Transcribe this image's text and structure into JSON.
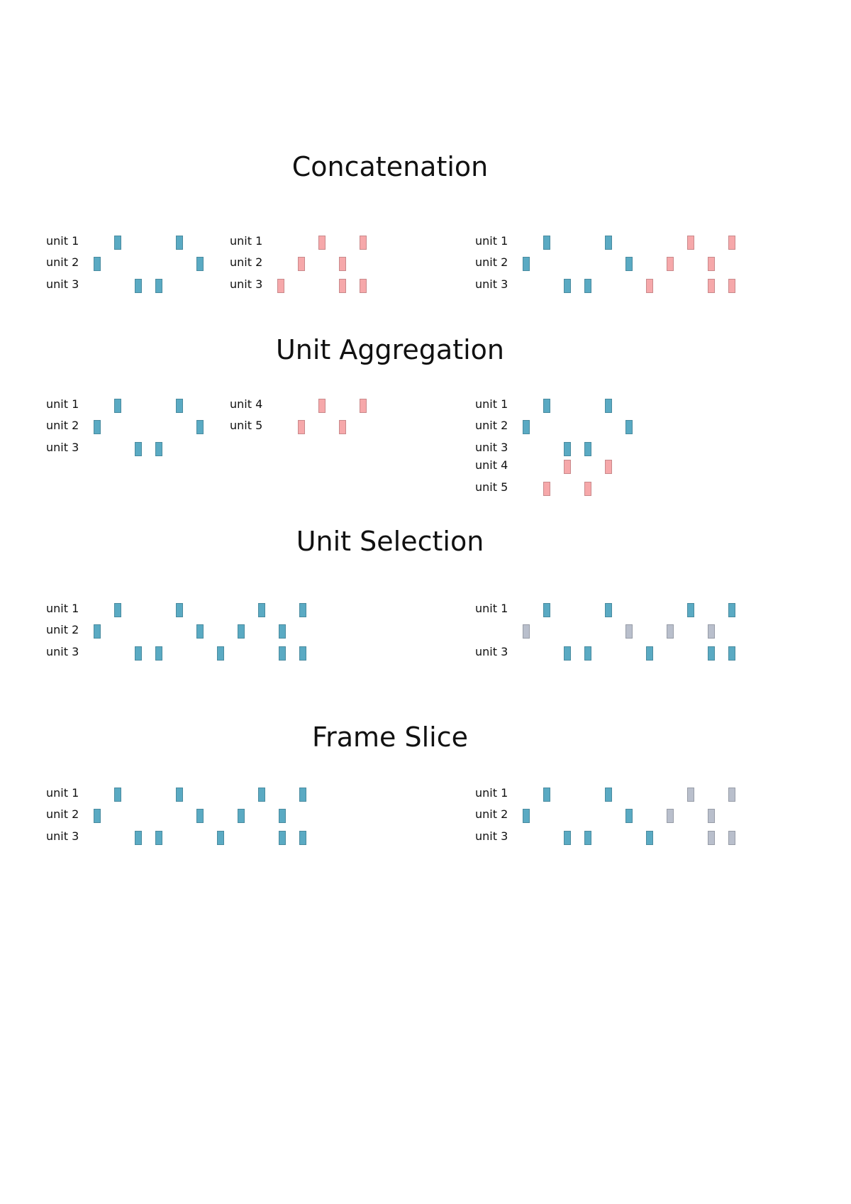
{
  "colors": {
    "blue": "#5aaac3",
    "pink": "#f6a8aa",
    "gray": "#b9bfcc"
  },
  "sections": [
    {
      "title": "Concatenation",
      "panels": [
        {
          "rows": [
            {
              "label": "unit 1",
              "spikes": [
                {
                  "t": 3,
                  "c": "blue"
                },
                {
                  "t": 6,
                  "c": "blue"
                }
              ]
            },
            {
              "label": "unit 2",
              "spikes": [
                {
                  "t": 2,
                  "c": "blue"
                },
                {
                  "t": 7,
                  "c": "blue"
                }
              ]
            },
            {
              "label": "unit 3",
              "spikes": [
                {
                  "t": 4,
                  "c": "blue"
                },
                {
                  "t": 5,
                  "c": "blue"
                }
              ]
            }
          ]
        },
        {
          "rows": [
            {
              "label": "unit 1",
              "spikes": [
                {
                  "t": 4,
                  "c": "pink"
                },
                {
                  "t": 6,
                  "c": "pink"
                }
              ]
            },
            {
              "label": "unit 2",
              "spikes": [
                {
                  "t": 3,
                  "c": "pink"
                },
                {
                  "t": 5,
                  "c": "pink"
                }
              ]
            },
            {
              "label": "unit 3",
              "spikes": [
                {
                  "t": 2,
                  "c": "pink"
                },
                {
                  "t": 5,
                  "c": "pink"
                },
                {
                  "t": 6,
                  "c": "pink"
                }
              ]
            }
          ]
        },
        {
          "rows": [
            {
              "label": "unit 1",
              "spikes": [
                {
                  "t": 3,
                  "c": "blue"
                },
                {
                  "t": 6,
                  "c": "blue"
                },
                {
                  "t": 10,
                  "c": "pink"
                },
                {
                  "t": 12,
                  "c": "pink"
                }
              ]
            },
            {
              "label": "unit 2",
              "spikes": [
                {
                  "t": 2,
                  "c": "blue"
                },
                {
                  "t": 7,
                  "c": "blue"
                },
                {
                  "t": 9,
                  "c": "pink"
                },
                {
                  "t": 11,
                  "c": "pink"
                }
              ]
            },
            {
              "label": "unit 3",
              "spikes": [
                {
                  "t": 4,
                  "c": "blue"
                },
                {
                  "t": 5,
                  "c": "blue"
                },
                {
                  "t": 8,
                  "c": "pink"
                },
                {
                  "t": 11,
                  "c": "pink"
                },
                {
                  "t": 12,
                  "c": "pink"
                }
              ]
            }
          ]
        }
      ]
    },
    {
      "title": "Unit Aggregation",
      "panels": [
        {
          "rows": [
            {
              "label": "unit 1",
              "spikes": [
                {
                  "t": 3,
                  "c": "blue"
                },
                {
                  "t": 6,
                  "c": "blue"
                }
              ]
            },
            {
              "label": "unit 2",
              "spikes": [
                {
                  "t": 2,
                  "c": "blue"
                },
                {
                  "t": 7,
                  "c": "blue"
                }
              ]
            },
            {
              "label": "unit 3",
              "spikes": [
                {
                  "t": 4,
                  "c": "blue"
                },
                {
                  "t": 5,
                  "c": "blue"
                }
              ]
            }
          ]
        },
        {
          "rows": [
            {
              "label": "unit 4",
              "spikes": [
                {
                  "t": 4,
                  "c": "pink"
                },
                {
                  "t": 6,
                  "c": "pink"
                }
              ]
            },
            {
              "label": "unit 5",
              "spikes": [
                {
                  "t": 3,
                  "c": "pink"
                },
                {
                  "t": 5,
                  "c": "pink"
                }
              ]
            }
          ]
        },
        {
          "rows": [
            {
              "label": "unit 1",
              "spikes": [
                {
                  "t": 3,
                  "c": "blue"
                },
                {
                  "t": 6,
                  "c": "blue"
                }
              ]
            },
            {
              "label": "unit 2",
              "spikes": [
                {
                  "t": 2,
                  "c": "blue"
                },
                {
                  "t": 7,
                  "c": "blue"
                }
              ]
            },
            {
              "label": "unit 3",
              "spikes": [
                {
                  "t": 4,
                  "c": "blue"
                },
                {
                  "t": 5,
                  "c": "blue"
                }
              ]
            },
            {
              "label": "unit 4",
              "spikes": [
                {
                  "t": 4,
                  "c": "pink"
                },
                {
                  "t": 6,
                  "c": "pink"
                }
              ]
            },
            {
              "label": "unit 5",
              "spikes": [
                {
                  "t": 3,
                  "c": "pink"
                },
                {
                  "t": 5,
                  "c": "pink"
                }
              ]
            }
          ]
        }
      ]
    },
    {
      "title": "Unit Selection",
      "panels": [
        {
          "rows": [
            {
              "label": "unit 1",
              "spikes": [
                {
                  "t": 3,
                  "c": "blue"
                },
                {
                  "t": 6,
                  "c": "blue"
                },
                {
                  "t": 10,
                  "c": "blue"
                },
                {
                  "t": 12,
                  "c": "blue"
                }
              ]
            },
            {
              "label": "unit 2",
              "spikes": [
                {
                  "t": 2,
                  "c": "blue"
                },
                {
                  "t": 7,
                  "c": "blue"
                },
                {
                  "t": 9,
                  "c": "blue"
                },
                {
                  "t": 11,
                  "c": "blue"
                }
              ]
            },
            {
              "label": "unit 3",
              "spikes": [
                {
                  "t": 4,
                  "c": "blue"
                },
                {
                  "t": 5,
                  "c": "blue"
                },
                {
                  "t": 8,
                  "c": "blue"
                },
                {
                  "t": 11,
                  "c": "blue"
                },
                {
                  "t": 12,
                  "c": "blue"
                }
              ]
            }
          ]
        },
        {
          "rows": [
            {
              "label": "unit 1",
              "spikes": [
                {
                  "t": 3,
                  "c": "blue"
                },
                {
                  "t": 6,
                  "c": "blue"
                },
                {
                  "t": 10,
                  "c": "blue"
                },
                {
                  "t": 12,
                  "c": "blue"
                }
              ]
            },
            {
              "label": "",
              "spikes": [
                {
                  "t": 2,
                  "c": "gray"
                },
                {
                  "t": 7,
                  "c": "gray"
                },
                {
                  "t": 9,
                  "c": "gray"
                },
                {
                  "t": 11,
                  "c": "gray"
                }
              ]
            },
            {
              "label": "unit 3",
              "spikes": [
                {
                  "t": 4,
                  "c": "blue"
                },
                {
                  "t": 5,
                  "c": "blue"
                },
                {
                  "t": 8,
                  "c": "blue"
                },
                {
                  "t": 11,
                  "c": "blue"
                },
                {
                  "t": 12,
                  "c": "blue"
                }
              ]
            }
          ]
        }
      ]
    },
    {
      "title": "Frame Slice",
      "panels": [
        {
          "rows": [
            {
              "label": "unit 1",
              "spikes": [
                {
                  "t": 3,
                  "c": "blue"
                },
                {
                  "t": 6,
                  "c": "blue"
                },
                {
                  "t": 10,
                  "c": "blue"
                },
                {
                  "t": 12,
                  "c": "blue"
                }
              ]
            },
            {
              "label": "unit 2",
              "spikes": [
                {
                  "t": 2,
                  "c": "blue"
                },
                {
                  "t": 7,
                  "c": "blue"
                },
                {
                  "t": 9,
                  "c": "blue"
                },
                {
                  "t": 11,
                  "c": "blue"
                }
              ]
            },
            {
              "label": "unit 3",
              "spikes": [
                {
                  "t": 4,
                  "c": "blue"
                },
                {
                  "t": 5,
                  "c": "blue"
                },
                {
                  "t": 8,
                  "c": "blue"
                },
                {
                  "t": 11,
                  "c": "blue"
                },
                {
                  "t": 12,
                  "c": "blue"
                }
              ]
            }
          ]
        },
        {
          "rows": [
            {
              "label": "unit 1",
              "spikes": [
                {
                  "t": 3,
                  "c": "blue"
                },
                {
                  "t": 6,
                  "c": "blue"
                },
                {
                  "t": 10,
                  "c": "gray"
                },
                {
                  "t": 12,
                  "c": "gray"
                }
              ]
            },
            {
              "label": "unit 2",
              "spikes": [
                {
                  "t": 2,
                  "c": "blue"
                },
                {
                  "t": 7,
                  "c": "blue"
                },
                {
                  "t": 9,
                  "c": "gray"
                },
                {
                  "t": 11,
                  "c": "gray"
                }
              ]
            },
            {
              "label": "unit 3",
              "spikes": [
                {
                  "t": 4,
                  "c": "blue"
                },
                {
                  "t": 5,
                  "c": "blue"
                },
                {
                  "t": 8,
                  "c": "blue"
                },
                {
                  "t": 11,
                  "c": "gray"
                },
                {
                  "t": 12,
                  "c": "gray"
                }
              ]
            }
          ]
        }
      ]
    }
  ]
}
